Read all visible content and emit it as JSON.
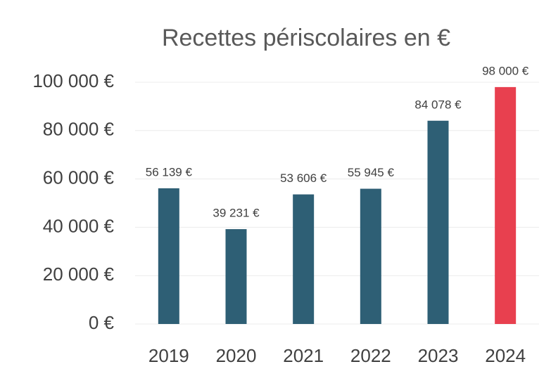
{
  "chart_data": {
    "type": "bar",
    "title": "Recettes périscolaires en €",
    "categories": [
      "2019",
      "2020",
      "2021",
      "2022",
      "2023",
      "2024"
    ],
    "values": [
      56139,
      39231,
      53606,
      55945,
      84078,
      98000
    ],
    "value_labels": [
      "56 139 €",
      "39 231 €",
      "53 606 €",
      "55 945 €",
      "84 078 €",
      "98 000 €"
    ],
    "colors": [
      "#2e5f75",
      "#2e5f75",
      "#2e5f75",
      "#2e5f75",
      "#2e5f75",
      "#e8404f"
    ],
    "ylim": [
      0,
      100000
    ],
    "yticks": [
      {
        "value": 0,
        "label": "0 €"
      },
      {
        "value": 20000,
        "label": "20 000 €"
      },
      {
        "value": 40000,
        "label": "40 000 €"
      },
      {
        "value": 60000,
        "label": "60 000 €"
      },
      {
        "value": 80000,
        "label": "80 000 €"
      },
      {
        "value": 100000,
        "label": "100 000 €"
      }
    ],
    "grid": true
  }
}
